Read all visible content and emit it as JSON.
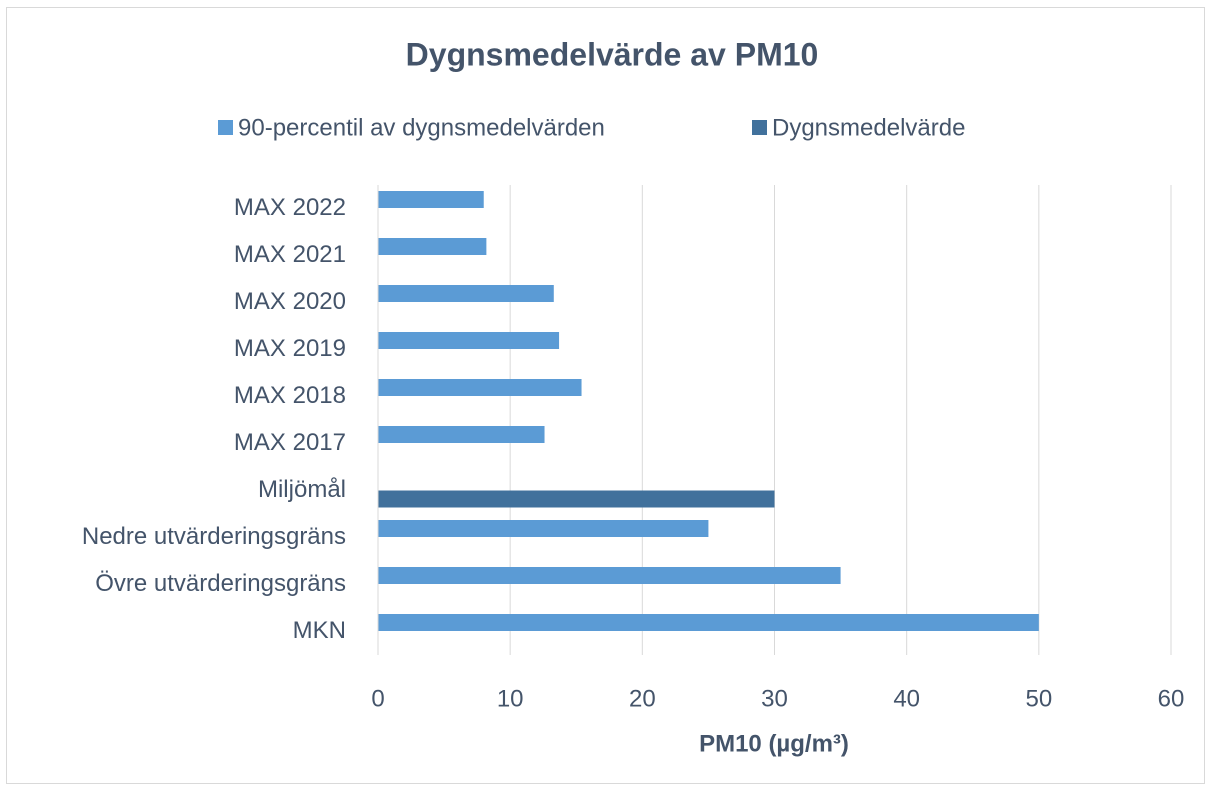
{
  "chart_data": {
    "type": "bar",
    "orientation": "horizontal",
    "title": "Dygnsmedelvärde av PM10",
    "x_label": "PM10 (µg/m³)",
    "categories": [
      "MAX 2022",
      "MAX 2021",
      "MAX 2020",
      "MAX 2019",
      "MAX 2018",
      "MAX 2017",
      "Miljömål",
      "Nedre utvärderingsgräns",
      "Övre utvärderingsgräns",
      "MKN"
    ],
    "series": [
      {
        "name": "90-percentil av dygnsmedelvärden",
        "color": "#5b9bd5",
        "values": [
          8,
          8.2,
          13.3,
          13.7,
          15.4,
          12.6,
          null,
          25,
          35,
          50
        ]
      },
      {
        "name": "Dygnsmedelvärde",
        "color": "#41719c",
        "values": [
          null,
          null,
          null,
          null,
          null,
          null,
          30,
          null,
          null,
          null
        ]
      }
    ],
    "xlim": [
      0,
      60
    ],
    "xticks": [
      0,
      10,
      20,
      30,
      40,
      50,
      60
    ],
    "grid": true,
    "legend": "top"
  }
}
